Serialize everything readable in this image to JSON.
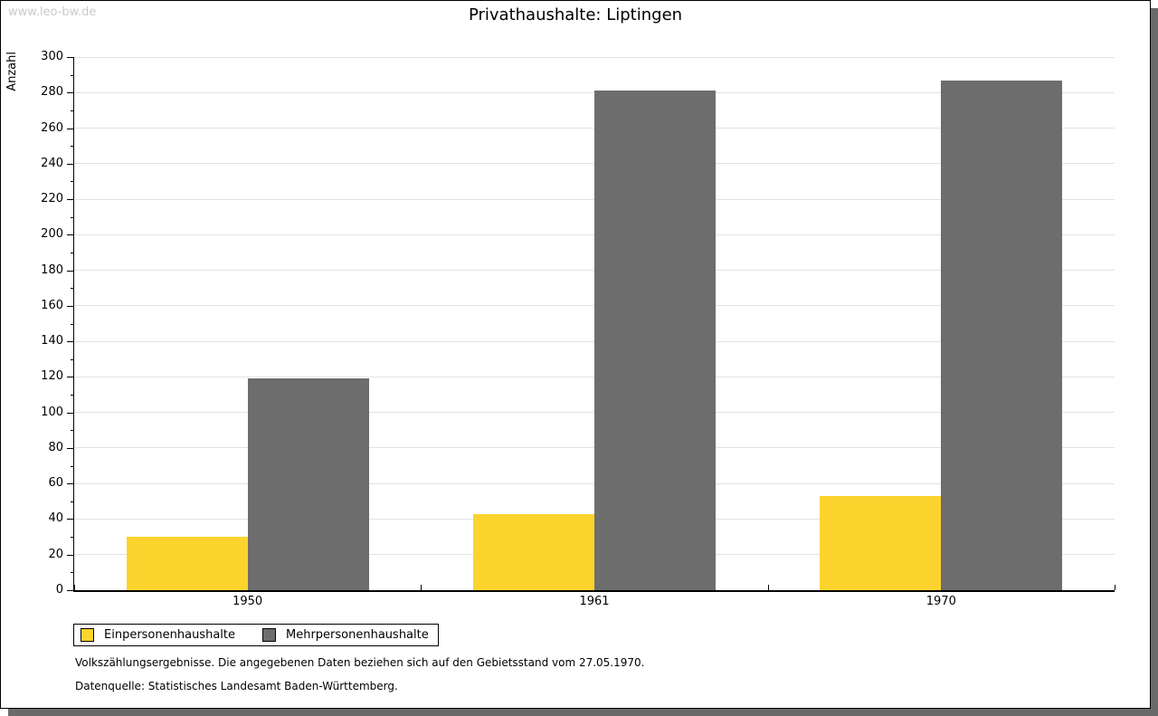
{
  "watermark": "www.leo-bw.de",
  "chart_data": {
    "type": "bar",
    "title": "Privathaushalte: Liptingen",
    "xlabel": "",
    "ylabel": "Anzahl",
    "categories": [
      "1950",
      "1961",
      "1970"
    ],
    "series": [
      {
        "name": "Einpersonenhaushalte",
        "color": "#fcd42d",
        "values": [
          30,
          43,
          53
        ]
      },
      {
        "name": "Mehrpersonenhaushalte",
        "color": "#6d6d6d",
        "values": [
          119,
          281,
          287
        ]
      }
    ],
    "ylim": [
      0,
      300
    ],
    "ytick_step": 20,
    "yminor_step": 10,
    "grid": true,
    "legend_position": "bottom-left"
  },
  "footnotes": {
    "line1": "Volkszählungsergebnisse. Die angegebenen Daten beziehen sich auf den Gebietsstand vom 27.05.1970.",
    "line2": "Datenquelle: Statistisches Landesamt Baden-Württemberg."
  }
}
